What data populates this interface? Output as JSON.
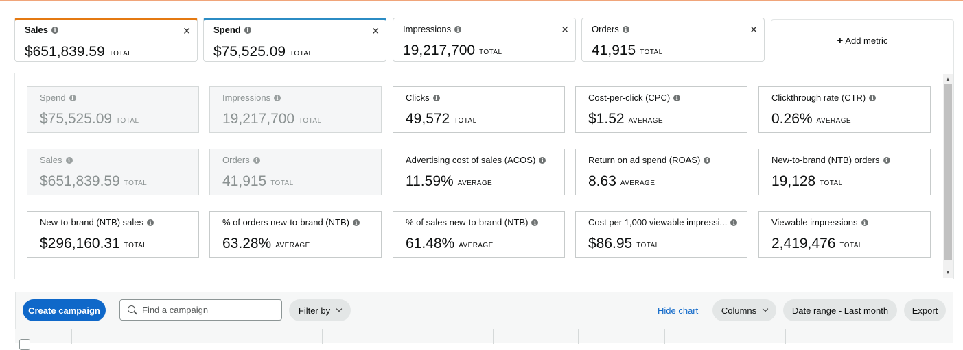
{
  "selected_metrics": [
    {
      "label": "Sales",
      "value": "$651,839.59",
      "unit": "TOTAL",
      "accent": "#e47911"
    },
    {
      "label": "Spend",
      "value": "$75,525.09",
      "unit": "TOTAL",
      "accent": "#2b8cc4"
    },
    {
      "label": "Impressions",
      "value": "19,217,700",
      "unit": "TOTAL"
    },
    {
      "label": "Orders",
      "value": "41,915",
      "unit": "TOTAL"
    }
  ],
  "add_metric_label": "Add metric",
  "metric_cards": [
    {
      "label": "Spend",
      "value": "$75,525.09",
      "unit": "TOTAL",
      "selected": true
    },
    {
      "label": "Impressions",
      "value": "19,217,700",
      "unit": "TOTAL",
      "selected": true
    },
    {
      "label": "Clicks",
      "value": "49,572",
      "unit": "TOTAL",
      "selected": false
    },
    {
      "label": "Cost-per-click (CPC)",
      "value": "$1.52",
      "unit": "AVERAGE",
      "selected": false
    },
    {
      "label": "Clickthrough rate (CTR)",
      "value": "0.26%",
      "unit": "AVERAGE",
      "selected": false
    },
    {
      "label": "Sales",
      "value": "$651,839.59",
      "unit": "TOTAL",
      "selected": true
    },
    {
      "label": "Orders",
      "value": "41,915",
      "unit": "TOTAL",
      "selected": true
    },
    {
      "label": "Advertising cost of sales (ACOS)",
      "value": "11.59%",
      "unit": "AVERAGE",
      "selected": false
    },
    {
      "label": "Return on ad spend (ROAS)",
      "value": "8.63",
      "unit": "AVERAGE",
      "selected": false
    },
    {
      "label": "New-to-brand (NTB) orders",
      "value": "19,128",
      "unit": "TOTAL",
      "selected": false
    },
    {
      "label": "New-to-brand (NTB) sales",
      "value": "$296,160.31",
      "unit": "TOTAL",
      "selected": false
    },
    {
      "label": "% of orders new-to-brand (NTB)",
      "value": "63.28%",
      "unit": "AVERAGE",
      "selected": false
    },
    {
      "label": "% of sales new-to-brand (NTB)",
      "value": "61.48%",
      "unit": "AVERAGE",
      "selected": false
    },
    {
      "label": "Cost per 1,000 viewable impressi...",
      "value": "$86.95",
      "unit": "TOTAL",
      "selected": false
    },
    {
      "label": "Viewable impressions",
      "value": "2,419,476",
      "unit": "TOTAL",
      "selected": false
    }
  ],
  "toolbar": {
    "create_campaign": "Create campaign",
    "search_placeholder": "Find a campaign",
    "filter_by": "Filter by",
    "hide_chart": "Hide chart",
    "columns": "Columns",
    "date_range": "Date range - Last month",
    "export": "Export"
  },
  "colors": {
    "primary": "#0f68c9",
    "top_line": "#f0a57a"
  }
}
